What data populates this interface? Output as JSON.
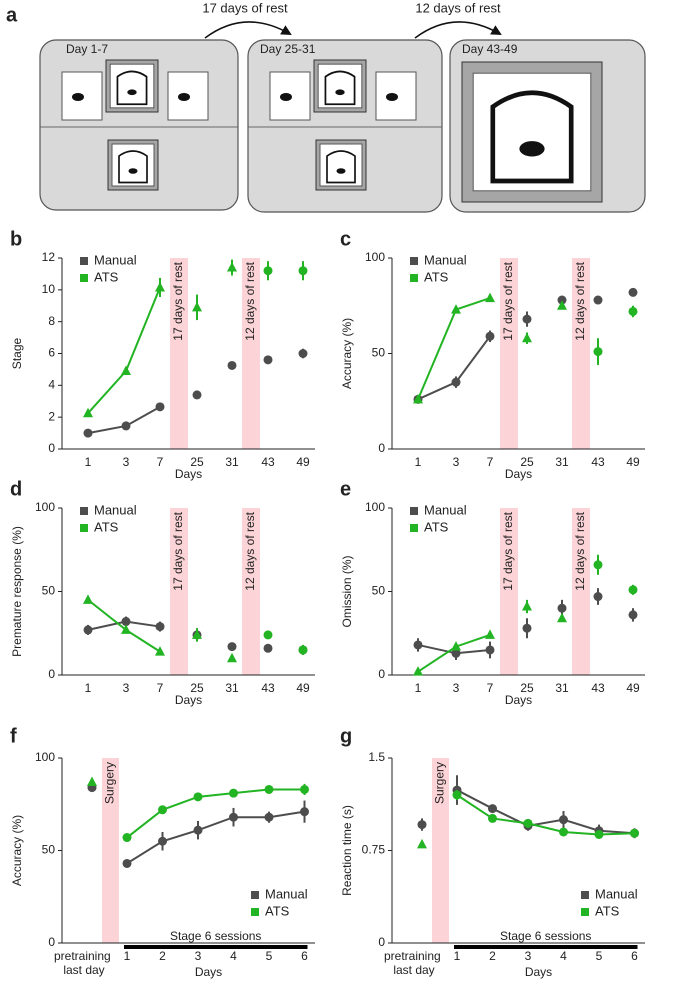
{
  "diagram": {
    "label": "a",
    "boxes": [
      "Day 1-7",
      "Day 25-31",
      "Day 43-49"
    ],
    "arrows": [
      "17 days of rest",
      "12 days of rest"
    ]
  },
  "chart_data": [
    {
      "panel": "b",
      "type": "line",
      "ylabel": "Stage",
      "xlabel": "Days",
      "categories": [
        "1",
        "3",
        "7",
        "25",
        "31",
        "43",
        "49"
      ],
      "ylim": [
        0,
        12
      ],
      "yticks": [
        0,
        2,
        4,
        6,
        8,
        10,
        12
      ],
      "legend": "upper left",
      "bands": [
        {
          "label": "17 days of rest"
        },
        {
          "label": "12 days of rest"
        }
      ],
      "series": [
        {
          "name": "Manual",
          "color": "#4d4d4d",
          "values": [
            1,
            1.45,
            2.65,
            3.4,
            5.25,
            5.6,
            6.0
          ],
          "errors": [
            0.1,
            0.1,
            0.1,
            0.15,
            0.25,
            0.15,
            0.3
          ]
        },
        {
          "name": "ATS",
          "color": "#22b422",
          "values": [
            2.25,
            4.9,
            10.15,
            8.9,
            11.4,
            11.2,
            11.2
          ],
          "errors": [
            0.1,
            0.2,
            0.6,
            0.8,
            0.5,
            0.6,
            0.6
          ]
        }
      ]
    },
    {
      "panel": "c",
      "type": "line",
      "ylabel": "Accuracy (%)",
      "xlabel": "Days",
      "categories": [
        "1",
        "3",
        "7",
        "25",
        "31",
        "43",
        "49"
      ],
      "ylim": [
        0,
        100
      ],
      "yticks": [
        0,
        50,
        100
      ],
      "legend": "upper left",
      "bands": [
        {
          "label": "17 days of rest"
        },
        {
          "label": "12 days of rest"
        }
      ],
      "series": [
        {
          "name": "Manual",
          "color": "#4d4d4d",
          "values": [
            26,
            35,
            59,
            68,
            78,
            78,
            82
          ],
          "errors": [
            1,
            3,
            3,
            4,
            1,
            1,
            2
          ]
        },
        {
          "name": "ATS",
          "color": "#22b422",
          "values": [
            26,
            73,
            79,
            58,
            75,
            51,
            72
          ],
          "errors": [
            1,
            1,
            1,
            3,
            2,
            7,
            3
          ]
        }
      ]
    },
    {
      "panel": "d",
      "type": "line",
      "ylabel": "Premature response (%)",
      "xlabel": "Days",
      "categories": [
        "1",
        "3",
        "7",
        "25",
        "31",
        "43",
        "49"
      ],
      "ylim": [
        0,
        100
      ],
      "yticks": [
        0,
        50,
        100
      ],
      "legend": "upper left",
      "bands": [
        {
          "label": "17 days of rest"
        },
        {
          "label": "12 days of rest"
        }
      ],
      "series": [
        {
          "name": "Manual",
          "color": "#4d4d4d",
          "values": [
            27,
            32,
            29,
            24,
            17,
            16,
            15
          ],
          "errors": [
            3,
            3,
            3,
            4,
            1,
            2,
            3
          ]
        },
        {
          "name": "ATS",
          "color": "#22b422",
          "values": [
            45,
            27,
            14,
            24,
            10,
            24,
            15
          ],
          "errors": [
            1,
            2,
            2,
            4,
            1,
            1,
            3
          ]
        }
      ]
    },
    {
      "panel": "e",
      "type": "line",
      "ylabel": "Omission (%)",
      "xlabel": "Days",
      "categories": [
        "1",
        "3",
        "7",
        "25",
        "31",
        "43",
        "49"
      ],
      "ylim": [
        0,
        100
      ],
      "yticks": [
        0,
        50,
        100
      ],
      "legend": "upper left",
      "bands": [
        {
          "label": "17 days of rest"
        },
        {
          "label": "12 days of rest"
        }
      ],
      "series": [
        {
          "name": "Manual",
          "color": "#4d4d4d",
          "values": [
            18,
            13,
            15,
            28,
            40,
            47,
            36
          ],
          "errors": [
            4,
            4,
            5,
            6,
            5,
            5,
            4
          ]
        },
        {
          "name": "ATS",
          "color": "#22b422",
          "values": [
            2,
            17,
            24,
            41,
            34,
            66,
            51
          ],
          "errors": [
            1,
            1,
            1,
            4,
            2,
            6,
            3
          ]
        }
      ]
    },
    {
      "panel": "f",
      "type": "line",
      "ylabel": "Accuracy (%)",
      "xlabel": "Days",
      "categories": [
        "pretraining last day",
        "1",
        "2",
        "3",
        "4",
        "5",
        "6"
      ],
      "ylim": [
        0,
        100
      ],
      "yticks": [
        0,
        50,
        100
      ],
      "legend": "lower right",
      "annotation": "Stage 6 sessions",
      "bands": [
        {
          "label": "Surgery"
        }
      ],
      "series": [
        {
          "name": "Manual",
          "color": "#4d4d4d",
          "values": [
            84,
            43,
            55,
            61,
            68,
            68,
            71
          ],
          "errors": [
            1,
            1,
            5,
            5,
            5,
            3,
            6
          ]
        },
        {
          "name": "ATS",
          "color": "#22b422",
          "values": [
            87,
            57,
            72,
            79,
            81,
            83,
            83
          ],
          "errors": [
            1,
            2,
            2,
            2,
            2,
            1,
            3
          ]
        }
      ]
    },
    {
      "panel": "g",
      "type": "line",
      "ylabel": "Reaction time (s)",
      "xlabel": "Days",
      "categories": [
        "pretraining last day",
        "1",
        "2",
        "3",
        "4",
        "5",
        "6"
      ],
      "ylim": [
        0,
        1.5
      ],
      "yticks": [
        0,
        0.75,
        1.5
      ],
      "legend": "lower right",
      "annotation": "Stage 6 sessions",
      "bands": [
        {
          "label": "Surgery"
        }
      ],
      "series": [
        {
          "name": "Manual",
          "color": "#4d4d4d",
          "values": [
            0.96,
            1.24,
            1.09,
            0.95,
            1.0,
            0.91,
            0.89
          ],
          "errors": [
            0.05,
            0.12,
            0.02,
            0.04,
            0.07,
            0.05,
            0.04
          ]
        },
        {
          "name": "ATS",
          "color": "#22b422",
          "values": [
            0.8,
            1.2,
            1.01,
            0.97,
            0.9,
            0.88,
            0.89
          ],
          "errors": [
            0.01,
            0.04,
            0.02,
            0.02,
            0.02,
            0.02,
            0.02
          ]
        }
      ]
    }
  ]
}
